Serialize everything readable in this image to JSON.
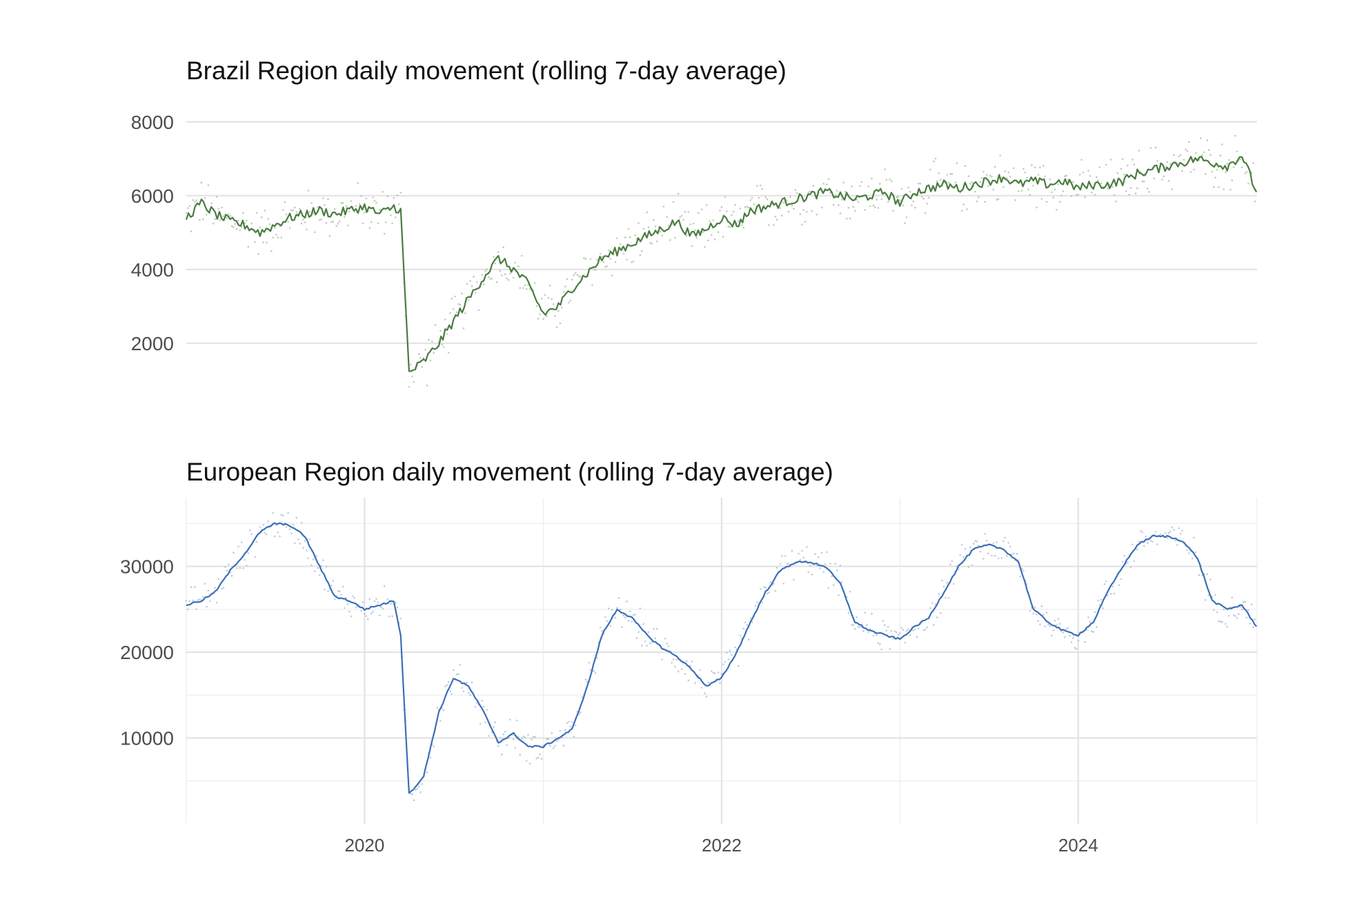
{
  "chart_data": [
    {
      "type": "line",
      "title": "Brazil Region daily movement (rolling 7-day average)",
      "xlabel": "",
      "ylabel": "",
      "xlim": [
        "2019-01-01",
        "2025-01-01"
      ],
      "ylim": [
        0,
        8500
      ],
      "yticks": [
        2000,
        4000,
        6000,
        8000
      ],
      "xticks": [],
      "grid": "horizontal",
      "legend": "none",
      "colors": {
        "line": "#4a7c3f",
        "points": "#a9b9a3"
      },
      "series": [
        {
          "x": [
            "2019-01-01",
            "2019-02-01",
            "2019-03-01",
            "2019-04-01",
            "2019-05-01",
            "2019-06-01",
            "2019-07-01",
            "2019-08-01",
            "2019-09-01",
            "2019-10-01",
            "2019-11-01",
            "2019-12-01",
            "2020-01-01",
            "2020-02-01",
            "2020-03-01",
            "2020-03-15",
            "2020-04-01",
            "2020-05-01",
            "2020-06-01",
            "2020-07-01",
            "2020-08-01",
            "2020-09-01",
            "2020-10-01",
            "2020-11-01",
            "2020-12-01",
            "2021-01-01",
            "2021-02-01",
            "2021-03-01",
            "2021-04-01",
            "2021-05-01",
            "2021-06-01",
            "2021-07-01",
            "2021-08-01",
            "2021-09-01",
            "2021-10-01",
            "2021-11-01",
            "2021-12-01",
            "2022-01-01",
            "2022-02-01",
            "2022-03-01",
            "2022-04-01",
            "2022-05-01",
            "2022-06-01",
            "2022-07-01",
            "2022-08-01",
            "2022-09-01",
            "2022-10-01",
            "2022-11-01",
            "2022-12-01",
            "2023-01-01",
            "2023-02-01",
            "2023-03-01",
            "2023-04-01",
            "2023-05-01",
            "2023-06-01",
            "2023-07-01",
            "2023-08-01",
            "2023-09-01",
            "2023-10-01",
            "2023-11-01",
            "2023-12-01",
            "2024-01-01",
            "2024-02-01",
            "2024-03-01",
            "2024-04-01",
            "2024-05-01",
            "2024-06-01",
            "2024-07-01",
            "2024-08-01",
            "2024-09-01",
            "2024-10-01",
            "2024-11-01",
            "2024-12-01",
            "2024-12-31"
          ],
          "values": [
            5400,
            5800,
            5500,
            5300,
            5200,
            5000,
            5200,
            5400,
            5500,
            5600,
            5500,
            5600,
            5700,
            5500,
            5700,
            5600,
            1200,
            1500,
            2000,
            2600,
            3200,
            3800,
            4300,
            4000,
            3600,
            2800,
            3000,
            3500,
            3900,
            4300,
            4500,
            4700,
            4900,
            5100,
            5300,
            4900,
            5100,
            5400,
            5200,
            5600,
            5700,
            5800,
            5900,
            6000,
            6100,
            6000,
            5900,
            6000,
            6100,
            5800,
            6100,
            6200,
            6300,
            6200,
            6300,
            6400,
            6500,
            6300,
            6400,
            6300,
            6400,
            6200,
            6300,
            6300,
            6400,
            6600,
            6700,
            6800,
            6900,
            7000,
            6900,
            6800,
            7100,
            6100
          ]
        }
      ]
    },
    {
      "type": "line",
      "title": "European Region daily movement (rolling 7-day average)",
      "xlabel": "",
      "ylabel": "",
      "xlim": [
        "2019-01-01",
        "2025-01-01"
      ],
      "ylim": [
        0,
        38000
      ],
      "yticks": [
        10000,
        20000,
        30000
      ],
      "xticks": [
        "2020",
        "2022",
        "2024"
      ],
      "grid": "both",
      "legend": "none",
      "colors": {
        "line": "#3b6fb6",
        "points": "#a9bad2"
      },
      "series": [
        {
          "x": [
            "2019-01-01",
            "2019-02-01",
            "2019-03-01",
            "2019-04-01",
            "2019-05-01",
            "2019-06-01",
            "2019-07-01",
            "2019-08-01",
            "2019-09-01",
            "2019-10-01",
            "2019-11-01",
            "2019-12-01",
            "2020-01-01",
            "2020-02-01",
            "2020-03-01",
            "2020-03-15",
            "2020-04-01",
            "2020-05-01",
            "2020-06-01",
            "2020-07-01",
            "2020-08-01",
            "2020-09-01",
            "2020-10-01",
            "2020-11-01",
            "2020-12-01",
            "2021-01-01",
            "2021-02-01",
            "2021-03-01",
            "2021-04-01",
            "2021-05-01",
            "2021-06-01",
            "2021-07-01",
            "2021-08-01",
            "2021-09-01",
            "2021-10-01",
            "2021-11-01",
            "2021-12-01",
            "2022-01-01",
            "2022-02-01",
            "2022-03-01",
            "2022-04-01",
            "2022-05-01",
            "2022-06-01",
            "2022-07-01",
            "2022-08-01",
            "2022-09-01",
            "2022-10-01",
            "2022-11-01",
            "2022-12-01",
            "2023-01-01",
            "2023-02-01",
            "2023-03-01",
            "2023-04-01",
            "2023-05-01",
            "2023-06-01",
            "2023-07-01",
            "2023-08-01",
            "2023-09-01",
            "2023-10-01",
            "2023-11-01",
            "2023-12-01",
            "2024-01-01",
            "2024-02-01",
            "2024-03-01",
            "2024-04-01",
            "2024-05-01",
            "2024-06-01",
            "2024-07-01",
            "2024-08-01",
            "2024-09-01",
            "2024-10-01",
            "2024-11-01",
            "2024-12-01",
            "2024-12-31"
          ],
          "values": [
            25500,
            26000,
            27000,
            29500,
            31500,
            34000,
            35000,
            34800,
            33500,
            30000,
            26500,
            26000,
            25000,
            25500,
            26000,
            22000,
            3500,
            5500,
            13000,
            17000,
            16000,
            13000,
            9500,
            10500,
            9000,
            9000,
            10000,
            11000,
            16000,
            22000,
            25000,
            24000,
            22000,
            20500,
            19500,
            18000,
            16000,
            17000,
            20000,
            23500,
            27000,
            29500,
            30500,
            30500,
            30000,
            28000,
            23500,
            22500,
            22000,
            21500,
            23000,
            24000,
            27000,
            30000,
            32000,
            32500,
            32000,
            30500,
            25000,
            23500,
            22500,
            22000,
            23500,
            27000,
            30000,
            32500,
            33500,
            33500,
            33000,
            31000,
            26000,
            25000,
            25500,
            23000
          ]
        }
      ]
    }
  ]
}
